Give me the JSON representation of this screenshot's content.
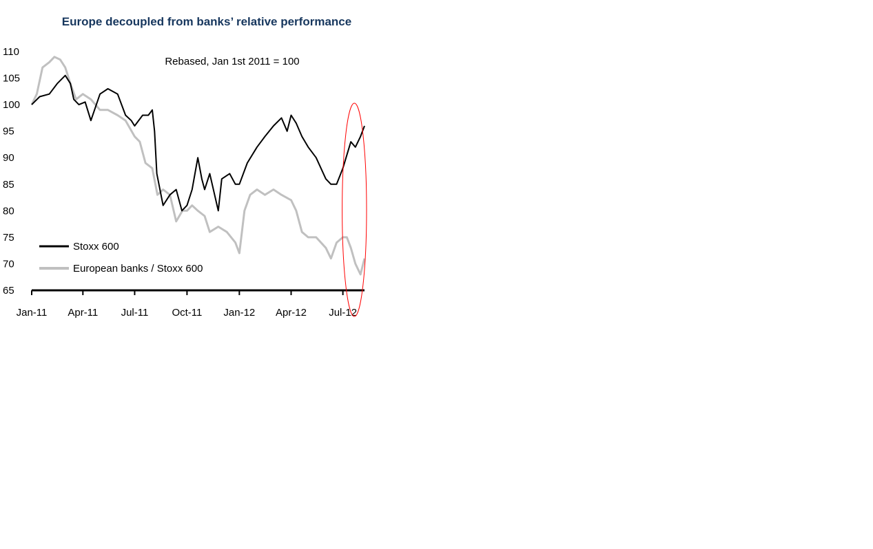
{
  "chart_data": {
    "type": "line",
    "title": "Europe decoupled from banks’ relative performance",
    "annotation": "Rebased, Jan 1st 2011 = 100",
    "xlabel": "",
    "ylabel": "",
    "x_tick_labels": [
      "Jan-11",
      "Apr-11",
      "Jul-11",
      "Oct-11",
      "Jan-12",
      "Apr-12",
      "Jul-12"
    ],
    "x_ticks": [
      "2011-01-01",
      "2011-04-01",
      "2011-07-01",
      "2011-10-01",
      "2012-01-01",
      "2012-04-01",
      "2012-07-01"
    ],
    "xlim": [
      "2011-01-01",
      "2012-08-08"
    ],
    "y_tick_labels": [
      "65",
      "70",
      "75",
      "80",
      "85",
      "90",
      "95",
      "100",
      "105",
      "110"
    ],
    "ylim": [
      65,
      110
    ],
    "grid": false,
    "legend_position": "bottom-left",
    "highlight": {
      "shape": "ellipse",
      "color": "#ff0000",
      "from": "2012-07-01",
      "to": "2012-08-08"
    },
    "series": [
      {
        "name": "Stoxx 600",
        "color": "#000000",
        "x": [
          "2011-01-01",
          "2011-01-15",
          "2011-02-01",
          "2011-02-15",
          "2011-03-01",
          "2011-03-10",
          "2011-03-16",
          "2011-03-25",
          "2011-04-05",
          "2011-04-15",
          "2011-05-01",
          "2011-05-15",
          "2011-06-01",
          "2011-06-15",
          "2011-06-25",
          "2011-07-01",
          "2011-07-15",
          "2011-07-25",
          "2011-08-01",
          "2011-08-05",
          "2011-08-09",
          "2011-08-20",
          "2011-09-01",
          "2011-09-12",
          "2011-09-22",
          "2011-10-01",
          "2011-10-10",
          "2011-10-20",
          "2011-10-27",
          "2011-11-01",
          "2011-11-10",
          "2011-11-25",
          "2011-12-01",
          "2011-12-15",
          "2011-12-25",
          "2012-01-01",
          "2012-01-15",
          "2012-02-01",
          "2012-02-15",
          "2012-03-01",
          "2012-03-15",
          "2012-03-25",
          "2012-04-01",
          "2012-04-10",
          "2012-04-20",
          "2012-05-01",
          "2012-05-15",
          "2012-06-01",
          "2012-06-10",
          "2012-06-20",
          "2012-07-01",
          "2012-07-15",
          "2012-07-23",
          "2012-08-01",
          "2012-08-08"
        ],
        "values": [
          100,
          101.5,
          102,
          104,
          105.5,
          104,
          101,
          100,
          100.5,
          97,
          102,
          103,
          102,
          98,
          97,
          96,
          98,
          98,
          99,
          95,
          87,
          81,
          83,
          84,
          80,
          81,
          84,
          90,
          86,
          84,
          87,
          80,
          86,
          87,
          85,
          85,
          89,
          92,
          94,
          96,
          97.5,
          95,
          98,
          96.5,
          94,
          92,
          90,
          86,
          85,
          85,
          88,
          93,
          92,
          94,
          96
        ]
      },
      {
        "name": "European banks / Stoxx 600",
        "color": "#c0c0c0",
        "x": [
          "2011-01-01",
          "2011-01-10",
          "2011-01-20",
          "2011-02-01",
          "2011-02-10",
          "2011-02-20",
          "2011-03-01",
          "2011-03-10",
          "2011-03-20",
          "2011-04-01",
          "2011-04-15",
          "2011-05-01",
          "2011-05-15",
          "2011-06-01",
          "2011-06-15",
          "2011-07-01",
          "2011-07-10",
          "2011-07-20",
          "2011-08-01",
          "2011-08-10",
          "2011-08-20",
          "2011-09-01",
          "2011-09-12",
          "2011-09-23",
          "2011-10-01",
          "2011-10-10",
          "2011-10-20",
          "2011-11-01",
          "2011-11-10",
          "2011-11-25",
          "2011-12-10",
          "2011-12-25",
          "2012-01-01",
          "2012-01-10",
          "2012-01-20",
          "2012-02-01",
          "2012-02-15",
          "2012-03-01",
          "2012-03-15",
          "2012-04-01",
          "2012-04-10",
          "2012-04-20",
          "2012-05-01",
          "2012-05-15",
          "2012-06-01",
          "2012-06-10",
          "2012-06-20",
          "2012-07-01",
          "2012-07-08",
          "2012-07-15",
          "2012-07-23",
          "2012-08-01",
          "2012-08-08"
        ],
        "values": [
          100,
          102,
          107,
          108,
          109,
          108.5,
          107,
          104,
          101,
          102,
          101,
          99,
          99,
          98,
          97,
          94,
          93,
          89,
          88,
          83,
          84,
          83,
          78,
          80,
          80,
          81,
          80,
          79,
          76,
          77,
          76,
          74,
          72,
          80,
          83,
          84,
          83,
          84,
          83,
          82,
          80,
          76,
          75,
          75,
          73,
          71,
          74,
          75,
          75,
          73,
          70,
          68,
          71
        ]
      }
    ]
  }
}
